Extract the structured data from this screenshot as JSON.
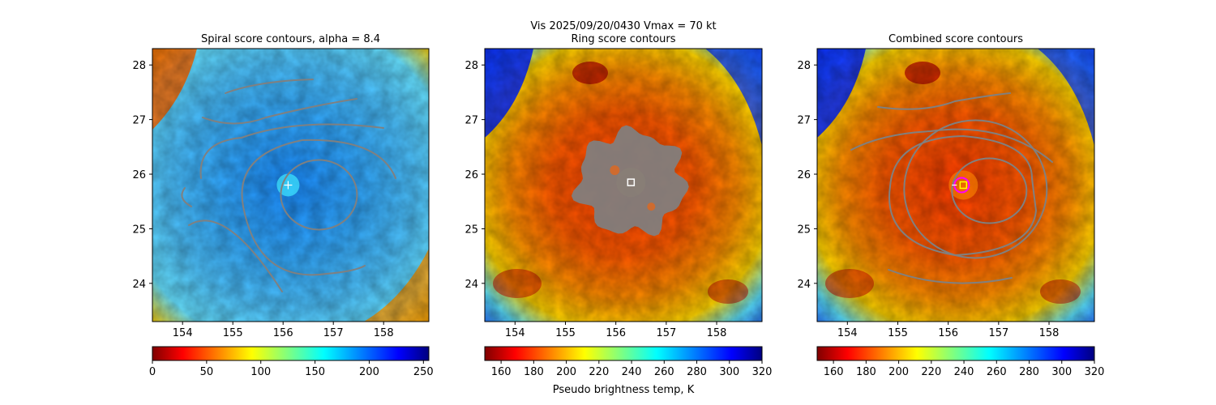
{
  "suptitle": "Vis  2025/09/20/0430    Vmax = 70 kt",
  "colors": {
    "contour": "#808080",
    "center_marker": "#ffffff",
    "ring_marker": "#ff00ff",
    "combined_marker": "#ffff00"
  },
  "chart_data": [
    {
      "type": "heatmap",
      "id": "spiral",
      "title": "Spiral score contours, alpha =  8.4",
      "xlim": [
        153.4,
        158.9
      ],
      "ylim": [
        23.3,
        28.3
      ],
      "xticks": [
        "154",
        "155",
        "156",
        "157",
        "158"
      ],
      "yticks": [
        "24",
        "25",
        "26",
        "27",
        "28"
      ],
      "center": [
        156.1,
        25.8
      ],
      "colormap": "jet_r",
      "colorbar": {
        "range": [
          0,
          255
        ],
        "ticks": [
          "0",
          "50",
          "100",
          "150",
          "200",
          "250"
        ],
        "label": ""
      }
    },
    {
      "type": "heatmap",
      "id": "ring",
      "title": "Ring score contours",
      "xlim": [
        153.4,
        158.9
      ],
      "ylim": [
        23.3,
        28.3
      ],
      "xticks": [
        "154",
        "155",
        "156",
        "157",
        "158"
      ],
      "yticks": [
        "24",
        "25",
        "26",
        "27",
        "28"
      ],
      "center": [
        156.3,
        25.85
      ],
      "colormap": "jet_r",
      "colorbar": {
        "range": [
          150,
          320
        ],
        "ticks": [
          "160",
          "180",
          "200",
          "220",
          "240",
          "260",
          "280",
          "300",
          "320"
        ],
        "label": "Pseudo brightness temp, K"
      }
    },
    {
      "type": "heatmap",
      "id": "combined",
      "title": "Combined score contours",
      "xlim": [
        153.4,
        158.9
      ],
      "ylim": [
        23.3,
        28.3
      ],
      "xticks": [
        "154",
        "155",
        "156",
        "157",
        "158"
      ],
      "yticks": [
        "24",
        "25",
        "26",
        "27",
        "28"
      ],
      "center": [
        156.3,
        25.8
      ],
      "colormap": "jet_r",
      "colorbar": {
        "range": [
          150,
          320
        ],
        "ticks": [
          "160",
          "180",
          "200",
          "220",
          "240",
          "260",
          "280",
          "300",
          "320"
        ],
        "label": ""
      }
    }
  ]
}
